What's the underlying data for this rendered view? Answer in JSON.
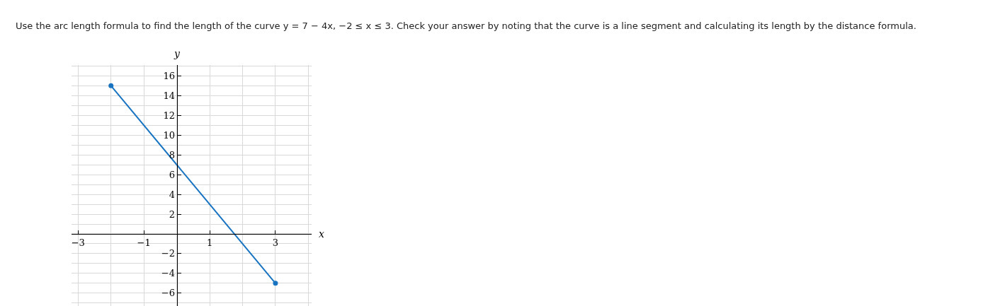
{
  "chart_data": {
    "type": "line",
    "title": "Use the arc length formula to find the length of the curve y = 7 − 4x, −2 ≤ x ≤ 3. Check your answer by noting that the curve is a line segment and calculating its length by the distance formula.",
    "xlabel": "x",
    "ylabel": "y",
    "x": [
      -2,
      3
    ],
    "values": [
      15,
      -5
    ],
    "color": "#1874c1",
    "xlim": [
      -3.2,
      4.1
    ],
    "ylim": [
      -7.3,
      17.1
    ],
    "xticks": [
      -3,
      -1,
      1,
      3
    ],
    "yticks": [
      -6,
      -4,
      -2,
      2,
      4,
      6,
      8,
      10,
      12,
      14,
      16
    ],
    "grid": true,
    "marker": "circle",
    "line_style": "solid"
  }
}
